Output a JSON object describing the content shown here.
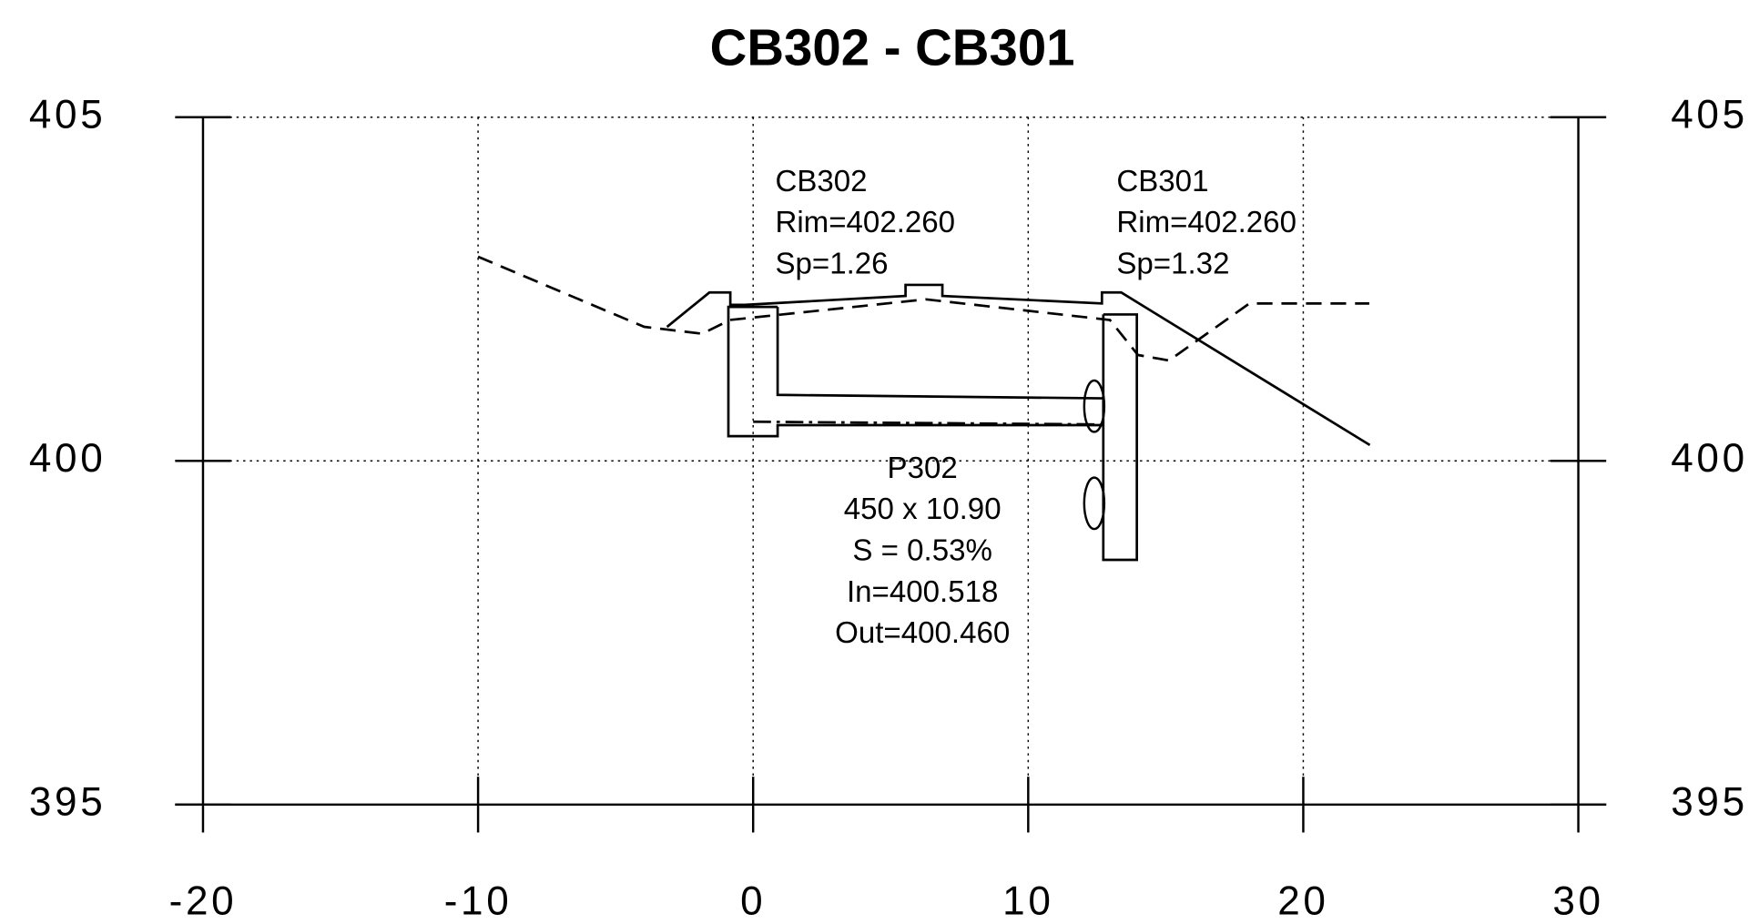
{
  "chart_data": {
    "type": "line",
    "title": "CB302  -  CB301",
    "xlim": [
      -20,
      30
    ],
    "ylim": [
      395,
      405
    ],
    "xticks": [
      -20,
      -10,
      0,
      10,
      20,
      30
    ],
    "yticks": [
      395,
      400,
      405
    ],
    "grid": true,
    "series": [
      {
        "color": "#000000",
        "style": "dashed",
        "x": [
          -10,
          -3.96,
          -1.85,
          -0.84,
          6.28,
          12.97,
          13.99,
          15.12,
          18.04,
          22.4
        ],
        "values": [
          402.97,
          401.95,
          401.85,
          402.05,
          402.35,
          402.05,
          401.54,
          401.46,
          402.29,
          402.29
        ]
      },
      {
        "color": "#000000",
        "style": "solid",
        "x": [
          -3.13,
          -1.59,
          -0.83,
          -0.83,
          -0.3,
          5.54,
          5.54,
          6.88,
          6.88,
          12.68,
          12.68,
          13.38,
          22.42
        ],
        "values": [
          401.95,
          402.45,
          402.45,
          402.27,
          402.27,
          402.4,
          402.56,
          402.56,
          402.4,
          402.29,
          402.45,
          402.45,
          400.23
        ]
      },
      {
        "color": "#000000",
        "style": "solid",
        "x": [
          0.89,
          -0.9,
          -0.9,
          0.89,
          0.89,
          12.73
        ],
        "values": [
          402.24,
          402.24,
          400.36,
          400.36,
          400.52,
          400.52
        ]
      },
      {
        "color": "#000000",
        "style": "solid",
        "x": [
          0.89,
          0.89,
          12.73
        ],
        "values": [
          402.24,
          400.96,
          400.91
        ]
      },
      {
        "color": "#000000",
        "style": "solid",
        "x": [
          12.73,
          13.95,
          13.95,
          12.73,
          12.73
        ],
        "values": [
          402.13,
          402.13,
          398.56,
          398.56,
          402.13
        ]
      },
      {
        "color": "#000000",
        "style": "dashdot",
        "x": [
          0,
          12.73
        ],
        "values": [
          400.57,
          400.53
        ]
      }
    ],
    "annotations": {
      "cb302": [
        "CB302",
        "Rim=402.260",
        "Sp=1.26"
      ],
      "cb301": [
        "CB301",
        "Rim=402.260",
        "Sp=1.32"
      ],
      "p302": [
        "P302",
        "450 x 10.90",
        "S = 0.53%",
        "In=400.518",
        "Out=400.460"
      ]
    }
  }
}
